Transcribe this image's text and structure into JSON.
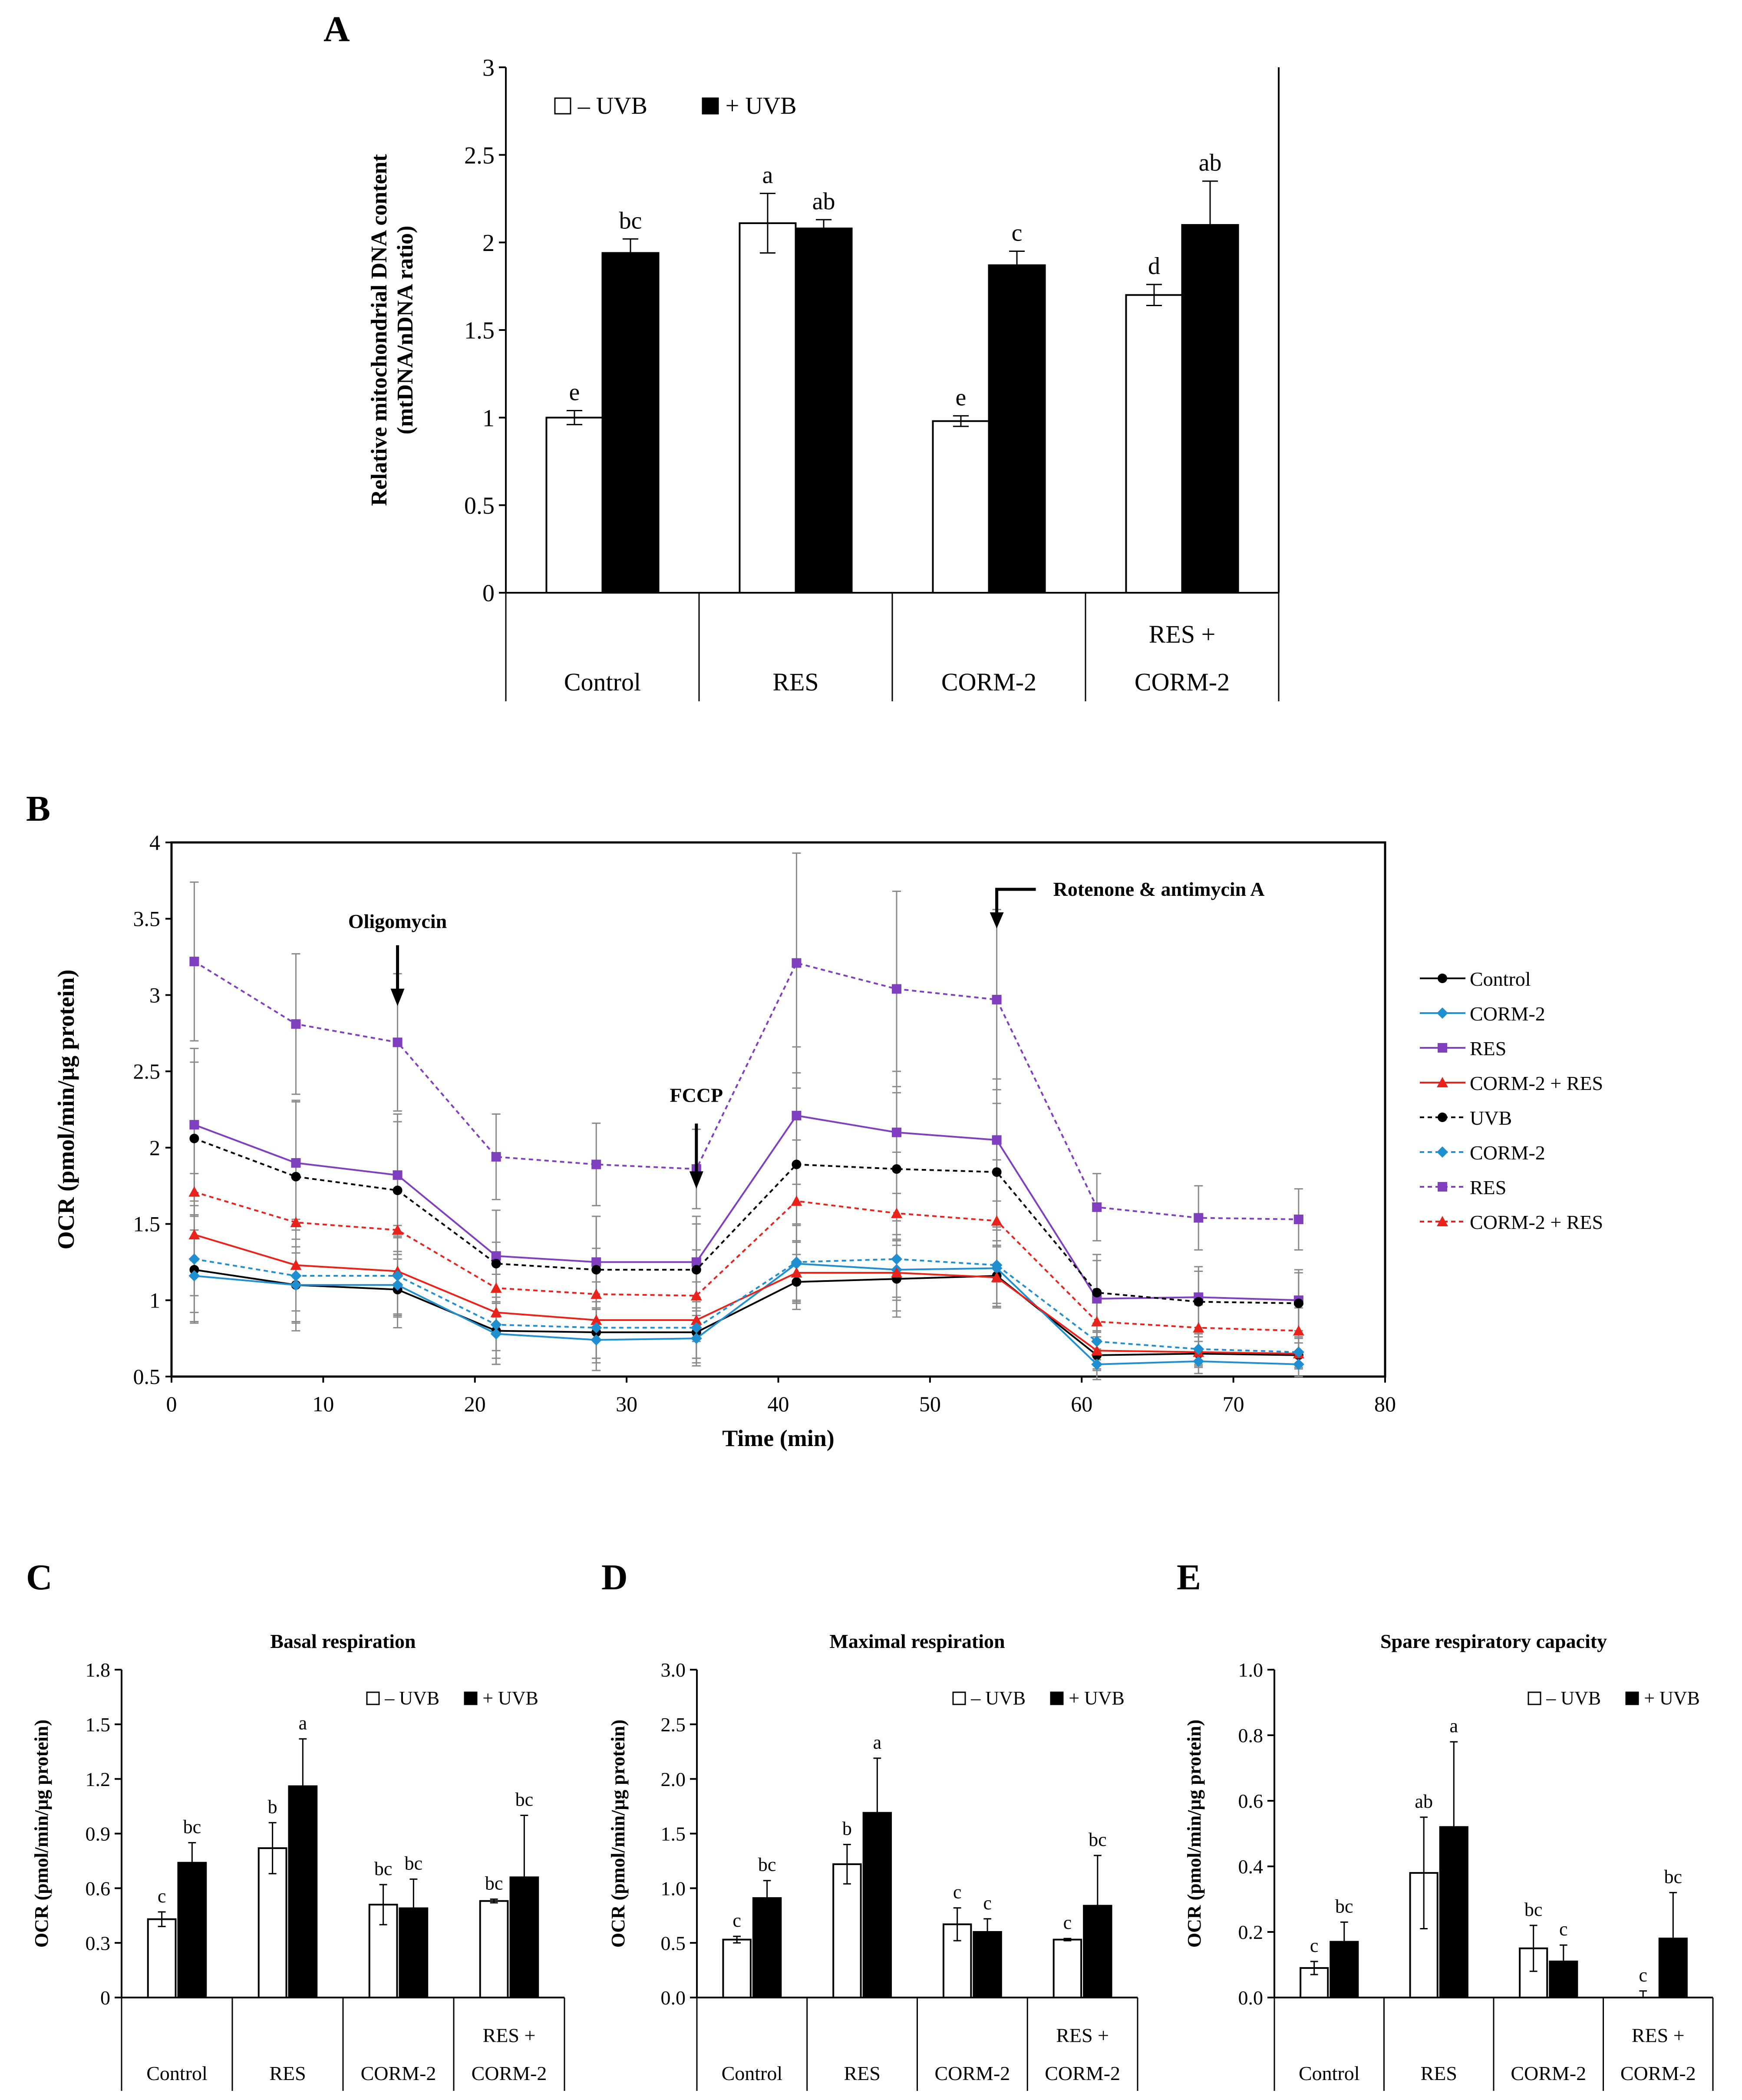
{
  "chart_data": [
    {
      "panel": "A",
      "type": "bar",
      "title": "",
      "ylabel": [
        "Relative mitochondrial DNA content",
        "(mtDNA/nDNA ratio)"
      ],
      "ylim": [
        0,
        3
      ],
      "yticks": [
        "0",
        "0.5",
        "1",
        "1.5",
        "2",
        "2.5",
        "3"
      ],
      "ytick_values": [
        0,
        0.5,
        1,
        1.5,
        2,
        2.5,
        3
      ],
      "categories": [
        [
          "Control"
        ],
        [
          "RES"
        ],
        [
          "CORM-2"
        ],
        [
          "RES +",
          "CORM-2"
        ]
      ],
      "legend": [
        "– UVB",
        "+ UVB"
      ],
      "series": [
        {
          "name": "– UVB",
          "values": [
            1.0,
            2.11,
            0.98,
            1.7
          ],
          "errors": [
            0.04,
            0.17,
            0.03,
            0.06
          ],
          "letters": [
            "e",
            "a",
            "e",
            "d"
          ]
        },
        {
          "name": "+ UVB",
          "values": [
            1.94,
            2.08,
            1.87,
            2.1
          ],
          "errors": [
            0.08,
            0.05,
            0.08,
            0.25
          ],
          "letters": [
            "bc",
            "ab",
            "c",
            "ab"
          ]
        }
      ]
    },
    {
      "panel": "B",
      "type": "line",
      "xlabel": "Time (min)",
      "ylabel": "OCR (pmol/min/μg protein)",
      "xlim": [
        0,
        80
      ],
      "ylim": [
        0.5,
        4
      ],
      "xticks": [
        "0",
        "10",
        "20",
        "30",
        "40",
        "50",
        "60",
        "70",
        "80"
      ],
      "xtick_values": [
        0,
        10,
        20,
        30,
        40,
        50,
        60,
        70,
        80
      ],
      "yticks": [
        "0.5",
        "1",
        "1.5",
        "2",
        "2.5",
        "3",
        "3.5",
        "4"
      ],
      "ytick_values": [
        0.5,
        1,
        1.5,
        2,
        2.5,
        3,
        3.5,
        4
      ],
      "x": [
        1.5,
        8.2,
        14.9,
        21.4,
        28.0,
        34.6,
        41.2,
        47.8,
        54.4,
        61.0,
        67.7,
        74.3
      ],
      "annotations": [
        {
          "text": "Oligomycin",
          "x": 14.9,
          "y": 3.44
        },
        {
          "text": "FCCP",
          "x": 34.6,
          "y": 2.3
        },
        {
          "text": "Rotenone & antimycin A",
          "x": 54.4,
          "y": 3.65
        }
      ],
      "series": [
        {
          "name": "Control",
          "color": "#000000",
          "dashed": false,
          "marker": "circle",
          "values": [
            1.2,
            1.1,
            1.07,
            0.8,
            0.79,
            0.79,
            1.12,
            1.14,
            1.16,
            0.64,
            0.65,
            0.64
          ],
          "errors": [
            0.35,
            0.3,
            0.25,
            0.22,
            0.2,
            0.2,
            0.18,
            0.25,
            0.2,
            0.1,
            0.08,
            0.08
          ]
        },
        {
          "name": "CORM-2",
          "color": "#1f8fcf",
          "dashed": false,
          "marker": "diamond",
          "values": [
            1.16,
            1.1,
            1.1,
            0.78,
            0.74,
            0.75,
            1.24,
            1.2,
            1.21,
            0.58,
            0.6,
            0.58
          ],
          "errors": [
            0.3,
            0.25,
            0.2,
            0.2,
            0.2,
            0.18,
            0.25,
            0.2,
            0.25,
            0.1,
            0.08,
            0.08
          ]
        },
        {
          "name": "RES",
          "color": "#7f3fbf",
          "dashed": false,
          "marker": "square",
          "values": [
            2.15,
            1.9,
            1.82,
            1.29,
            1.25,
            1.25,
            2.21,
            2.1,
            2.05,
            1.01,
            1.02,
            1.0
          ],
          "errors": [
            0.5,
            0.4,
            0.4,
            0.3,
            0.3,
            0.3,
            0.45,
            0.4,
            0.4,
            0.25,
            0.2,
            0.2
          ]
        },
        {
          "name": "CORM-2 + RES",
          "color": "#e8231c",
          "dashed": false,
          "marker": "triangle",
          "values": [
            1.43,
            1.23,
            1.19,
            0.92,
            0.87,
            0.87,
            1.18,
            1.18,
            1.15,
            0.67,
            0.66,
            0.65
          ],
          "errors": [
            0.4,
            0.3,
            0.3,
            0.25,
            0.25,
            0.25,
            0.2,
            0.25,
            0.2,
            0.12,
            0.1,
            0.1
          ]
        },
        {
          "name": "UVB",
          "color": "#000000",
          "dashed": true,
          "marker": "circle",
          "values": [
            2.06,
            1.81,
            1.72,
            1.24,
            1.2,
            1.2,
            1.89,
            1.86,
            1.84,
            1.05,
            0.99,
            0.98
          ],
          "errors": [
            0.5,
            0.5,
            0.45,
            0.35,
            0.35,
            0.3,
            0.5,
            0.5,
            0.45,
            0.25,
            0.2,
            0.2
          ]
        },
        {
          "name": "CORM-2",
          "color": "#1f8fcf",
          "dashed": true,
          "marker": "diamond",
          "values": [
            1.27,
            1.16,
            1.16,
            0.84,
            0.82,
            0.82,
            1.25,
            1.27,
            1.23,
            0.73,
            0.68,
            0.66
          ],
          "errors": [
            0.35,
            0.3,
            0.25,
            0.22,
            0.2,
            0.2,
            0.25,
            0.25,
            0.25,
            0.12,
            0.1,
            0.1
          ]
        },
        {
          "name": "RES",
          "color": "#7f3fbf",
          "dashed": true,
          "marker": "square",
          "values": [
            3.22,
            2.81,
            2.69,
            1.94,
            1.89,
            1.86,
            3.21,
            3.04,
            2.97,
            1.61,
            1.54,
            1.53
          ],
          "errors": [
            0.52,
            0.46,
            0.45,
            0.28,
            0.27,
            0.26,
            0.72,
            0.64,
            0.59,
            0.22,
            0.21,
            0.2
          ]
        },
        {
          "name": "CORM-2 + RES",
          "color": "#e8231c",
          "dashed": true,
          "marker": "triangle",
          "values": [
            1.71,
            1.51,
            1.46,
            1.08,
            1.04,
            1.03,
            1.65,
            1.57,
            1.52,
            0.86,
            0.82,
            0.8
          ],
          "errors": [
            0.45,
            0.4,
            0.35,
            0.3,
            0.3,
            0.3,
            0.4,
            0.4,
            0.4,
            0.2,
            0.15,
            0.15
          ]
        }
      ]
    },
    {
      "panel": "C",
      "type": "bar",
      "title": "Basal respiration",
      "ylabel": "OCR (pmol/min/μg protein)",
      "ylim": [
        0,
        1.8
      ],
      "yticks": [
        "0",
        "0.3",
        "0.6",
        "0.9",
        "1.2",
        "1.5",
        "1.8"
      ],
      "ytick_values": [
        0,
        0.3,
        0.6,
        0.9,
        1.2,
        1.5,
        1.8
      ],
      "categories": [
        [
          "Control"
        ],
        [
          "RES"
        ],
        [
          "CORM-2"
        ],
        [
          "RES +",
          "CORM-2"
        ]
      ],
      "legend": [
        "– UVB",
        "+ UVB"
      ],
      "series": [
        {
          "name": "– UVB",
          "values": [
            0.43,
            0.82,
            0.51,
            0.53
          ],
          "errors": [
            0.04,
            0.14,
            0.11,
            0.01
          ],
          "letters": [
            "c",
            "b",
            "bc",
            "bc"
          ]
        },
        {
          "name": "+ UVB",
          "values": [
            0.74,
            1.16,
            0.49,
            0.66
          ],
          "errors": [
            0.11,
            0.26,
            0.16,
            0.34
          ],
          "letters": [
            "bc",
            "a",
            "bc",
            "bc"
          ]
        }
      ]
    },
    {
      "panel": "D",
      "type": "bar",
      "title": "Maximal respiration",
      "ylabel": "OCR (pmol/min/μg protein)",
      "ylim": [
        0,
        3
      ],
      "yticks": [
        "0.0",
        "0.5",
        "1.0",
        "1.5",
        "2.0",
        "2.5",
        "3.0"
      ],
      "ytick_values": [
        0,
        0.5,
        1,
        1.5,
        2,
        2.5,
        3
      ],
      "categories": [
        [
          "Control"
        ],
        [
          "RES"
        ],
        [
          "CORM-2"
        ],
        [
          "RES +",
          "CORM-2"
        ]
      ],
      "legend": [
        "– UVB",
        "+ UVB"
      ],
      "series": [
        {
          "name": "– UVB",
          "values": [
            0.53,
            1.22,
            0.67,
            0.53
          ],
          "errors": [
            0.03,
            0.18,
            0.15,
            0.01
          ],
          "letters": [
            "c",
            "b",
            "c",
            "c"
          ]
        },
        {
          "name": "+ UVB",
          "values": [
            0.91,
            1.69,
            0.6,
            0.84
          ],
          "errors": [
            0.16,
            0.5,
            0.12,
            0.46
          ],
          "letters": [
            "bc",
            "a",
            "c",
            "bc"
          ]
        }
      ]
    },
    {
      "panel": "E",
      "type": "bar",
      "title": "Spare respiratory  capacity",
      "ylabel": "OCR (pmol/min/μg protein)",
      "ylim": [
        0,
        1
      ],
      "yticks": [
        "0.0",
        "0.2",
        "0.4",
        "0.6",
        "0.8",
        "1.0"
      ],
      "ytick_values": [
        0,
        0.2,
        0.4,
        0.6,
        0.8,
        1.0
      ],
      "categories": [
        [
          "Control"
        ],
        [
          "RES"
        ],
        [
          "CORM-2"
        ],
        [
          "RES +",
          "CORM-2"
        ]
      ],
      "legend": [
        "– UVB",
        "+ UVB"
      ],
      "series": [
        {
          "name": "– UVB",
          "values": [
            0.09,
            0.38,
            0.15,
            0.0
          ],
          "errors": [
            0.02,
            0.17,
            0.07,
            0.02
          ],
          "letters": [
            "c",
            "ab",
            "bc",
            "c"
          ]
        },
        {
          "name": "+ UVB",
          "values": [
            0.17,
            0.52,
            0.11,
            0.18
          ],
          "errors": [
            0.06,
            0.26,
            0.05,
            0.14
          ],
          "letters": [
            "bc",
            "a",
            "c",
            "bc"
          ]
        }
      ]
    }
  ],
  "panel_labels": {
    "a": "A",
    "b": "B",
    "c": "C",
    "d": "D",
    "e": "E"
  }
}
